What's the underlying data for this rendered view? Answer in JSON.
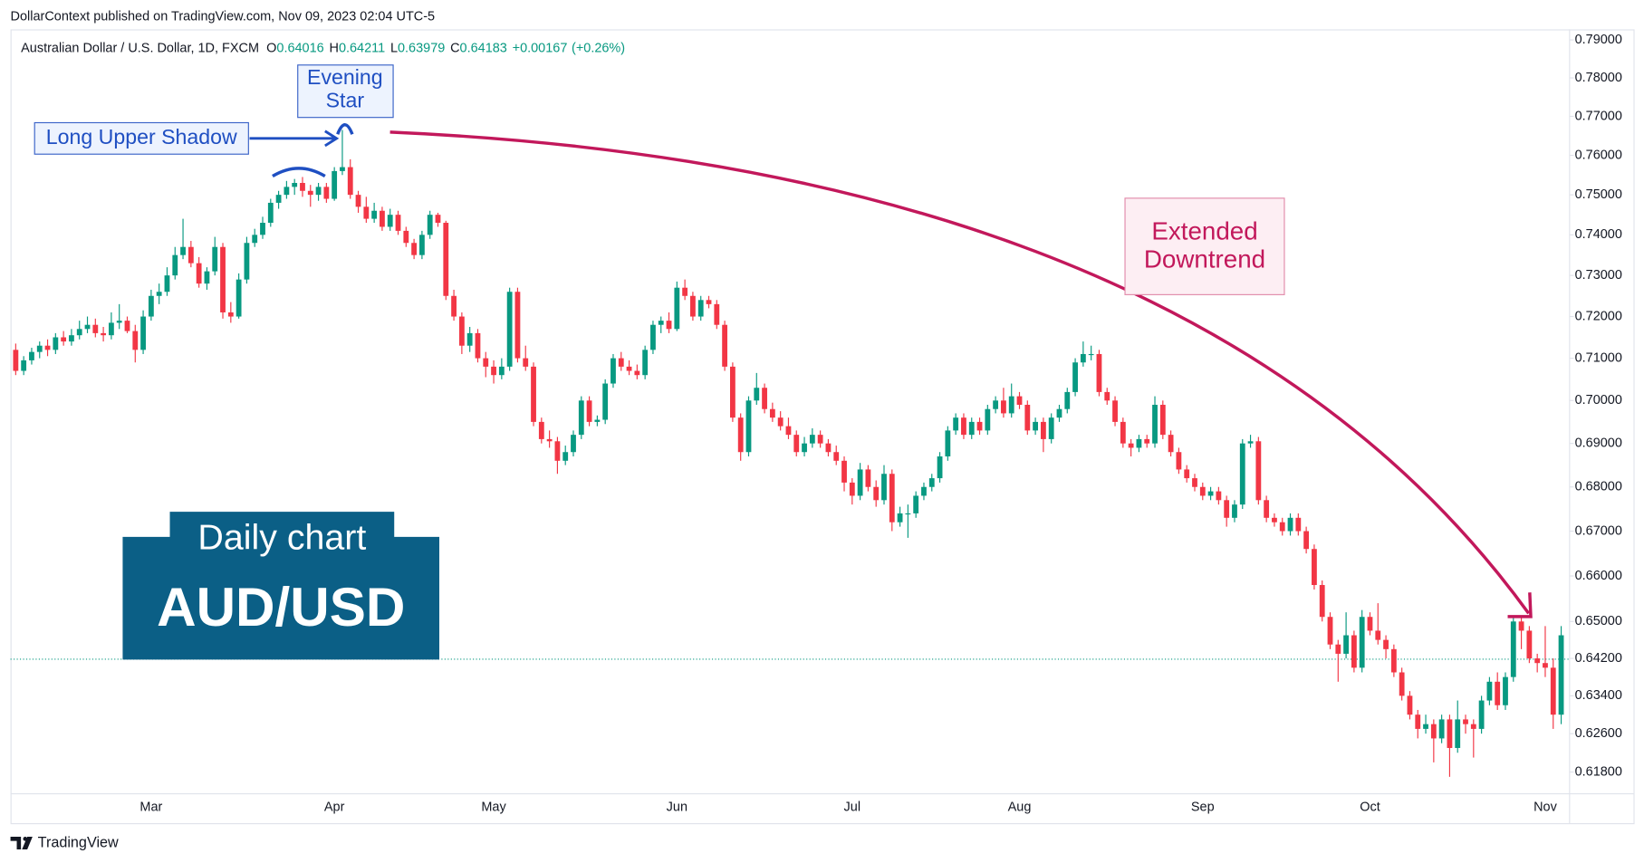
{
  "header": {
    "publisher": "DollarContext published on TradingView.com, Nov 09, 2023 02:04 UTC-5",
    "footer": "TradingView"
  },
  "chart_data": {
    "type": "candlestick",
    "title": "Australian Dollar / U.S. Dollar, 1D, FXCM",
    "ohlc_legend": {
      "labels": [
        "O",
        "H",
        "L",
        "C"
      ],
      "values": [
        0.64016,
        0.64211,
        0.63979,
        0.64183
      ],
      "change": {
        "value": 0.00167,
        "label": "+0.00167"
      },
      "change_pct": {
        "value": 0.26,
        "label": "(+0.26%)"
      }
    },
    "categories": [
      null,
      null,
      null,
      null,
      null,
      null,
      null,
      null,
      null,
      null,
      null,
      null,
      null,
      null,
      null,
      null,
      null,
      "Mar",
      null,
      null,
      null,
      null,
      null,
      null,
      null,
      null,
      null,
      null,
      null,
      null,
      null,
      null,
      null,
      null,
      null,
      null,
      null,
      null,
      null,
      null,
      "Apr",
      null,
      null,
      null,
      null,
      null,
      null,
      null,
      null,
      null,
      null,
      null,
      null,
      null,
      null,
      null,
      null,
      null,
      null,
      null,
      "May",
      null,
      null,
      null,
      null,
      null,
      null,
      null,
      null,
      null,
      null,
      null,
      null,
      null,
      null,
      null,
      null,
      null,
      null,
      null,
      null,
      null,
      null,
      "Jun",
      null,
      null,
      null,
      null,
      null,
      null,
      null,
      null,
      null,
      null,
      null,
      null,
      null,
      null,
      null,
      null,
      null,
      null,
      null,
      null,
      null,
      "Jul",
      null,
      null,
      null,
      null,
      null,
      null,
      null,
      null,
      null,
      null,
      null,
      null,
      null,
      null,
      null,
      null,
      null,
      null,
      null,
      null,
      "Aug",
      null,
      null,
      null,
      null,
      null,
      null,
      null,
      null,
      null,
      null,
      null,
      null,
      null,
      null,
      null,
      null,
      null,
      null,
      null,
      null,
      null,
      null,
      "Sep",
      null,
      null,
      null,
      null,
      null,
      null,
      null,
      null,
      null,
      null,
      null,
      null,
      null,
      null,
      null,
      null,
      null,
      null,
      null,
      null,
      "Oct",
      null,
      null,
      null,
      null,
      null,
      null,
      null,
      null,
      null,
      null,
      null,
      null,
      null,
      null,
      null,
      null,
      null,
      null,
      null,
      null,
      null,
      "Nov",
      null,
      null
    ],
    "ohlc": [
      [
        0.712,
        0.7135,
        0.706,
        0.707
      ],
      [
        0.707,
        0.7105,
        0.706,
        0.7095
      ],
      [
        0.7095,
        0.7125,
        0.7085,
        0.7115
      ],
      [
        0.7115,
        0.714,
        0.71,
        0.713
      ],
      [
        0.713,
        0.7145,
        0.7105,
        0.712
      ],
      [
        0.712,
        0.716,
        0.711,
        0.715
      ],
      [
        0.715,
        0.7165,
        0.713,
        0.714
      ],
      [
        0.714,
        0.717,
        0.713,
        0.7155
      ],
      [
        0.7155,
        0.719,
        0.7145,
        0.717
      ],
      [
        0.717,
        0.72,
        0.716,
        0.718
      ],
      [
        0.718,
        0.7195,
        0.715,
        0.716
      ],
      [
        0.716,
        0.7175,
        0.714,
        0.7155
      ],
      [
        0.7155,
        0.721,
        0.7145,
        0.7185
      ],
      [
        0.7185,
        0.723,
        0.717,
        0.719
      ],
      [
        0.719,
        0.72,
        0.716,
        0.7165
      ],
      [
        0.7165,
        0.718,
        0.709,
        0.712
      ],
      [
        0.712,
        0.7215,
        0.711,
        0.72
      ],
      [
        0.72,
        0.7265,
        0.719,
        0.725
      ],
      [
        0.725,
        0.728,
        0.723,
        0.726
      ],
      [
        0.726,
        0.732,
        0.725,
        0.73
      ],
      [
        0.73,
        0.737,
        0.729,
        0.735
      ],
      [
        0.735,
        0.744,
        0.734,
        0.737
      ],
      [
        0.737,
        0.7385,
        0.732,
        0.733
      ],
      [
        0.733,
        0.7345,
        0.727,
        0.728
      ],
      [
        0.728,
        0.732,
        0.7265,
        0.731
      ],
      [
        0.731,
        0.7395,
        0.73,
        0.737
      ],
      [
        0.737,
        0.738,
        0.7195,
        0.721
      ],
      [
        0.721,
        0.7235,
        0.7185,
        0.72
      ],
      [
        0.72,
        0.7305,
        0.7195,
        0.729
      ],
      [
        0.729,
        0.7395,
        0.728,
        0.738
      ],
      [
        0.738,
        0.7415,
        0.737,
        0.74
      ],
      [
        0.74,
        0.7445,
        0.739,
        0.743
      ],
      [
        0.743,
        0.749,
        0.742,
        0.748
      ],
      [
        0.748,
        0.751,
        0.7465,
        0.75
      ],
      [
        0.75,
        0.7535,
        0.749,
        0.752
      ],
      [
        0.752,
        0.754,
        0.75,
        0.753
      ],
      [
        0.753,
        0.7545,
        0.7495,
        0.751
      ],
      [
        0.751,
        0.7525,
        0.747,
        0.75
      ],
      [
        0.75,
        0.753,
        0.7485,
        0.752
      ],
      [
        0.752,
        0.753,
        0.748,
        0.749
      ],
      [
        0.749,
        0.757,
        0.7485,
        0.756
      ],
      [
        0.756,
        0.7665,
        0.755,
        0.757
      ],
      [
        0.757,
        0.759,
        0.749,
        0.75
      ],
      [
        0.75,
        0.751,
        0.7455,
        0.747
      ],
      [
        0.747,
        0.7495,
        0.743,
        0.744
      ],
      [
        0.744,
        0.748,
        0.743,
        0.746
      ],
      [
        0.746,
        0.747,
        0.741,
        0.742
      ],
      [
        0.742,
        0.7465,
        0.741,
        0.745
      ],
      [
        0.745,
        0.746,
        0.74,
        0.741
      ],
      [
        0.741,
        0.742,
        0.737,
        0.738
      ],
      [
        0.738,
        0.739,
        0.734,
        0.735
      ],
      [
        0.735,
        0.741,
        0.734,
        0.74
      ],
      [
        0.74,
        0.746,
        0.739,
        0.745
      ],
      [
        0.745,
        0.7455,
        0.742,
        0.743
      ],
      [
        0.743,
        0.7435,
        0.724,
        0.725
      ],
      [
        0.725,
        0.7265,
        0.719,
        0.72
      ],
      [
        0.72,
        0.721,
        0.711,
        0.713
      ],
      [
        0.713,
        0.7175,
        0.7115,
        0.716
      ],
      [
        0.716,
        0.717,
        0.709,
        0.71
      ],
      [
        0.71,
        0.7115,
        0.7055,
        0.708
      ],
      [
        0.708,
        0.7095,
        0.704,
        0.706
      ],
      [
        0.706,
        0.71,
        0.705,
        0.708
      ],
      [
        0.708,
        0.727,
        0.707,
        0.726
      ],
      [
        0.726,
        0.727,
        0.709,
        0.71
      ],
      [
        0.71,
        0.713,
        0.707,
        0.708
      ],
      [
        0.708,
        0.709,
        0.694,
        0.695
      ],
      [
        0.695,
        0.696,
        0.69,
        0.691
      ],
      [
        0.691,
        0.693,
        0.689,
        0.6905
      ],
      [
        0.6905,
        0.6915,
        0.683,
        0.686
      ],
      [
        0.686,
        0.6895,
        0.685,
        0.688
      ],
      [
        0.688,
        0.693,
        0.687,
        0.692
      ],
      [
        0.692,
        0.701,
        0.691,
        0.7
      ],
      [
        0.7,
        0.701,
        0.694,
        0.695
      ],
      [
        0.695,
        0.6965,
        0.694,
        0.6955
      ],
      [
        0.6955,
        0.705,
        0.6945,
        0.704
      ],
      [
        0.704,
        0.711,
        0.703,
        0.71
      ],
      [
        0.71,
        0.7115,
        0.707,
        0.708
      ],
      [
        0.708,
        0.7095,
        0.706,
        0.707
      ],
      [
        0.707,
        0.7085,
        0.705,
        0.706
      ],
      [
        0.706,
        0.713,
        0.705,
        0.712
      ],
      [
        0.712,
        0.719,
        0.711,
        0.718
      ],
      [
        0.718,
        0.72,
        0.716,
        0.719
      ],
      [
        0.719,
        0.721,
        0.716,
        0.717
      ],
      [
        0.717,
        0.7285,
        0.7165,
        0.727
      ],
      [
        0.727,
        0.729,
        0.724,
        0.725
      ],
      [
        0.725,
        0.726,
        0.719,
        0.72
      ],
      [
        0.72,
        0.725,
        0.719,
        0.724
      ],
      [
        0.724,
        0.725,
        0.722,
        0.723
      ],
      [
        0.723,
        0.724,
        0.717,
        0.718
      ],
      [
        0.718,
        0.719,
        0.707,
        0.708
      ],
      [
        0.708,
        0.709,
        0.695,
        0.696
      ],
      [
        0.696,
        0.697,
        0.686,
        0.688
      ],
      [
        0.688,
        0.701,
        0.687,
        0.7
      ],
      [
        0.7,
        0.7065,
        0.699,
        0.703
      ],
      [
        0.703,
        0.704,
        0.697,
        0.698
      ],
      [
        0.698,
        0.6995,
        0.695,
        0.696
      ],
      [
        0.696,
        0.6975,
        0.693,
        0.694
      ],
      [
        0.694,
        0.696,
        0.691,
        0.692
      ],
      [
        0.692,
        0.693,
        0.687,
        0.688
      ],
      [
        0.688,
        0.6915,
        0.687,
        0.69
      ],
      [
        0.69,
        0.6935,
        0.689,
        0.692
      ],
      [
        0.692,
        0.693,
        0.689,
        0.69
      ],
      [
        0.69,
        0.691,
        0.687,
        0.688
      ],
      [
        0.688,
        0.6895,
        0.685,
        0.686
      ],
      [
        0.686,
        0.687,
        0.679,
        0.681
      ],
      [
        0.681,
        0.682,
        0.676,
        0.678
      ],
      [
        0.678,
        0.6855,
        0.677,
        0.684
      ],
      [
        0.684,
        0.685,
        0.679,
        0.68
      ],
      [
        0.68,
        0.6815,
        0.6755,
        0.677
      ],
      [
        0.677,
        0.685,
        0.676,
        0.683
      ],
      [
        0.683,
        0.684,
        0.67,
        0.672
      ],
      [
        0.672,
        0.6755,
        0.671,
        0.674
      ],
      [
        0.674,
        0.676,
        0.6685,
        0.674
      ],
      [
        0.674,
        0.679,
        0.673,
        0.678
      ],
      [
        0.678,
        0.681,
        0.677,
        0.68
      ],
      [
        0.68,
        0.683,
        0.679,
        0.682
      ],
      [
        0.682,
        0.688,
        0.681,
        0.687
      ],
      [
        0.687,
        0.694,
        0.686,
        0.693
      ],
      [
        0.693,
        0.697,
        0.692,
        0.696
      ],
      [
        0.696,
        0.697,
        0.691,
        0.692
      ],
      [
        0.692,
        0.696,
        0.691,
        0.695
      ],
      [
        0.695,
        0.696,
        0.692,
        0.693
      ],
      [
        0.693,
        0.699,
        0.692,
        0.698
      ],
      [
        0.698,
        0.701,
        0.697,
        0.7
      ],
      [
        0.7,
        0.703,
        0.696,
        0.697
      ],
      [
        0.697,
        0.704,
        0.696,
        0.701
      ],
      [
        0.701,
        0.702,
        0.698,
        0.699
      ],
      [
        0.699,
        0.7,
        0.692,
        0.693
      ],
      [
        0.693,
        0.696,
        0.692,
        0.695
      ],
      [
        0.695,
        0.696,
        0.688,
        0.691
      ],
      [
        0.691,
        0.697,
        0.69,
        0.696
      ],
      [
        0.696,
        0.699,
        0.695,
        0.698
      ],
      [
        0.698,
        0.703,
        0.697,
        0.702
      ],
      [
        0.702,
        0.71,
        0.701,
        0.709
      ],
      [
        0.709,
        0.714,
        0.708,
        0.711
      ],
      [
        0.711,
        0.713,
        0.7095,
        0.711
      ],
      [
        0.711,
        0.712,
        0.701,
        0.702
      ],
      [
        0.702,
        0.703,
        0.699,
        0.7
      ],
      [
        0.7,
        0.701,
        0.694,
        0.695
      ],
      [
        0.695,
        0.696,
        0.689,
        0.69
      ],
      [
        0.69,
        0.691,
        0.687,
        0.689
      ],
      [
        0.689,
        0.692,
        0.688,
        0.691
      ],
      [
        0.691,
        0.692,
        0.689,
        0.69
      ],
      [
        0.69,
        0.701,
        0.689,
        0.699
      ],
      [
        0.699,
        0.7,
        0.691,
        0.692
      ],
      [
        0.692,
        0.693,
        0.687,
        0.688
      ],
      [
        0.688,
        0.689,
        0.683,
        0.684
      ],
      [
        0.684,
        0.685,
        0.681,
        0.682
      ],
      [
        0.682,
        0.683,
        0.679,
        0.68
      ],
      [
        0.68,
        0.681,
        0.677,
        0.678
      ],
      [
        0.678,
        0.68,
        0.677,
        0.679
      ],
      [
        0.679,
        0.68,
        0.676,
        0.677
      ],
      [
        0.677,
        0.678,
        0.671,
        0.673
      ],
      [
        0.673,
        0.677,
        0.672,
        0.676
      ],
      [
        0.676,
        0.691,
        0.675,
        0.69
      ],
      [
        0.69,
        0.692,
        0.689,
        0.6905
      ],
      [
        0.6905,
        0.6915,
        0.676,
        0.677
      ],
      [
        0.677,
        0.678,
        0.672,
        0.673
      ],
      [
        0.673,
        0.674,
        0.671,
        0.672
      ],
      [
        0.672,
        0.673,
        0.669,
        0.67
      ],
      [
        0.67,
        0.674,
        0.669,
        0.673
      ],
      [
        0.673,
        0.674,
        0.669,
        0.67
      ],
      [
        0.67,
        0.671,
        0.665,
        0.666
      ],
      [
        0.666,
        0.667,
        0.657,
        0.658
      ],
      [
        0.658,
        0.659,
        0.65,
        0.651
      ],
      [
        0.651,
        0.652,
        0.644,
        0.645
      ],
      [
        0.645,
        0.646,
        0.637,
        0.643
      ],
      [
        0.643,
        0.652,
        0.642,
        0.647
      ],
      [
        0.647,
        0.648,
        0.639,
        0.64
      ],
      [
        0.64,
        0.6525,
        0.639,
        0.651
      ],
      [
        0.651,
        0.652,
        0.647,
        0.648
      ],
      [
        0.648,
        0.654,
        0.645,
        0.646
      ],
      [
        0.646,
        0.647,
        0.642,
        0.644
      ],
      [
        0.644,
        0.645,
        0.638,
        0.639
      ],
      [
        0.639,
        0.64,
        0.633,
        0.634
      ],
      [
        0.634,
        0.635,
        0.629,
        0.63
      ],
      [
        0.63,
        0.631,
        0.625,
        0.627
      ],
      [
        0.627,
        0.63,
        0.626,
        0.628
      ],
      [
        0.628,
        0.629,
        0.62,
        0.625
      ],
      [
        0.625,
        0.63,
        0.624,
        0.629
      ],
      [
        0.629,
        0.63,
        0.617,
        0.623
      ],
      [
        0.623,
        0.633,
        0.622,
        0.629
      ],
      [
        0.629,
        0.63,
        0.626,
        0.628
      ],
      [
        0.628,
        0.629,
        0.621,
        0.627
      ],
      [
        0.627,
        0.634,
        0.626,
        0.633
      ],
      [
        0.633,
        0.638,
        0.632,
        0.637
      ],
      [
        0.637,
        0.639,
        0.631,
        0.632
      ],
      [
        0.632,
        0.639,
        0.631,
        0.638
      ],
      [
        0.638,
        0.651,
        0.637,
        0.65
      ],
      [
        0.65,
        0.651,
        0.644,
        0.648
      ],
      [
        0.648,
        0.649,
        0.641,
        0.642
      ],
      [
        0.642,
        0.643,
        0.639,
        0.641
      ],
      [
        0.641,
        0.649,
        0.638,
        0.64
      ],
      [
        0.64,
        0.642,
        0.627,
        0.63
      ],
      [
        0.63,
        0.649,
        0.628,
        0.647
      ]
    ],
    "up_color": "#089981",
    "down_color": "#f23645",
    "log_scale": true,
    "grid": false,
    "ylim": [
      0.6135,
      0.7928
    ],
    "yticks": [
      {
        "value": 0.79,
        "label": "0.79000"
      },
      {
        "value": 0.78,
        "label": "0.78000"
      },
      {
        "value": 0.77,
        "label": "0.77000"
      },
      {
        "value": 0.76,
        "label": "0.76000"
      },
      {
        "value": 0.75,
        "label": "0.75000"
      },
      {
        "value": 0.74,
        "label": "0.74000"
      },
      {
        "value": 0.73,
        "label": "0.73000"
      },
      {
        "value": 0.72,
        "label": "0.72000"
      },
      {
        "value": 0.71,
        "label": "0.71000"
      },
      {
        "value": 0.7,
        "label": "0.70000"
      },
      {
        "value": 0.69,
        "label": "0.69000"
      },
      {
        "value": 0.68,
        "label": "0.68000"
      },
      {
        "value": 0.67,
        "label": "0.67000"
      },
      {
        "value": 0.66,
        "label": "0.66000"
      },
      {
        "value": 0.65,
        "label": "0.65000"
      },
      {
        "value": 0.642,
        "label": "0.64200"
      },
      {
        "value": 0.634,
        "label": "0.63400"
      },
      {
        "value": 0.626,
        "label": "0.62600"
      },
      {
        "value": 0.618,
        "label": "0.61800"
      }
    ],
    "annotations": {
      "evening_star": [
        "Evening",
        "Star"
      ],
      "long_upper_shadow": "Long Upper Shadow",
      "extended_downtrend": [
        "Extended",
        "Downtrend"
      ]
    }
  },
  "badge": {
    "line1": "Daily chart",
    "line2": "AUD/USD"
  }
}
